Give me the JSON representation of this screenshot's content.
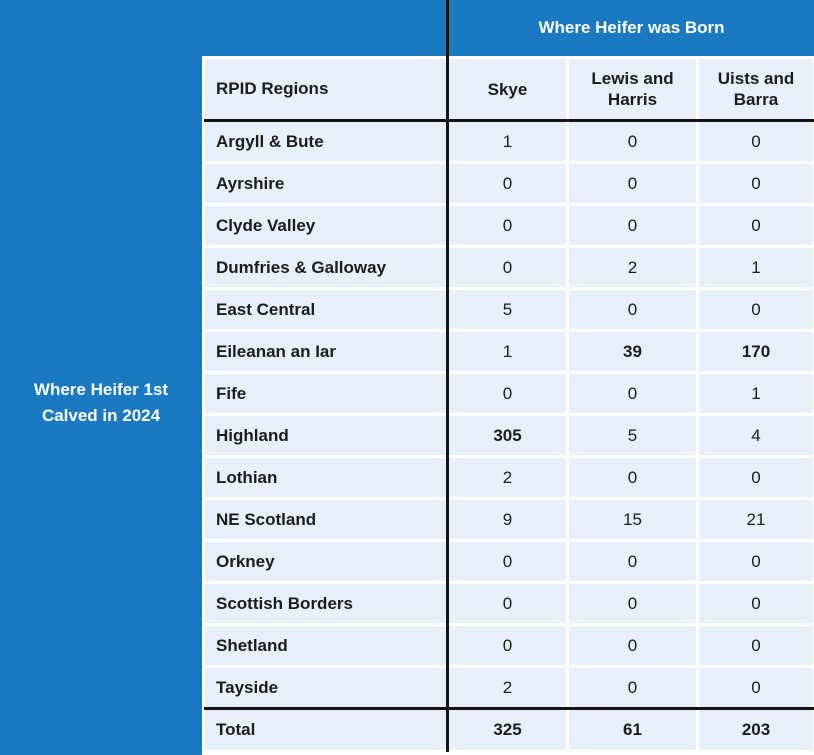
{
  "colors": {
    "brand_blue": "#1a79c1",
    "cell_bg": "#e7f0f8",
    "line": "#141414",
    "text": "#1c1c1c"
  },
  "top_header": {
    "title": "Where Heifer was Born"
  },
  "left_panel": {
    "label_line1": "Where Heifer 1st",
    "label_line2": "Calved in 2024"
  },
  "table": {
    "corner_header": "RPID Regions",
    "columns": [
      "Skye",
      "Lewis and Harris",
      "Uists and Barra"
    ],
    "rows": [
      {
        "label": "Argyll & Bute",
        "values": [
          "1",
          "0",
          "0"
        ],
        "bold": []
      },
      {
        "label": "Ayrshire",
        "values": [
          "0",
          "0",
          "0"
        ],
        "bold": []
      },
      {
        "label": "Clyde Valley",
        "values": [
          "0",
          "0",
          "0"
        ],
        "bold": []
      },
      {
        "label": "Dumfries & Galloway",
        "values": [
          "0",
          "2",
          "1"
        ],
        "bold": []
      },
      {
        "label": "East Central",
        "values": [
          "5",
          "0",
          "0"
        ],
        "bold": []
      },
      {
        "label": "Eileanan an Iar",
        "values": [
          "1",
          "39",
          "170"
        ],
        "bold": [
          1,
          2
        ]
      },
      {
        "label": "Fife",
        "values": [
          "0",
          "0",
          "1"
        ],
        "bold": []
      },
      {
        "label": "Highland",
        "values": [
          "305",
          "5",
          "4"
        ],
        "bold": [
          0
        ]
      },
      {
        "label": "Lothian",
        "values": [
          "2",
          "0",
          "0"
        ],
        "bold": []
      },
      {
        "label": "NE Scotland",
        "values": [
          "9",
          "15",
          "21"
        ],
        "bold": []
      },
      {
        "label": "Orkney",
        "values": [
          "0",
          "0",
          "0"
        ],
        "bold": []
      },
      {
        "label": "Scottish Borders",
        "values": [
          "0",
          "0",
          "0"
        ],
        "bold": []
      },
      {
        "label": "Shetland",
        "values": [
          "0",
          "0",
          "0"
        ],
        "bold": []
      },
      {
        "label": "Tayside",
        "values": [
          "2",
          "0",
          "0"
        ],
        "bold": []
      },
      {
        "label": "Total",
        "values": [
          "325",
          "61",
          "203"
        ],
        "bold": [
          0,
          1,
          2
        ]
      }
    ]
  },
  "chart_data": {
    "type": "table",
    "title": "Where Heifer was Born vs Where Heifer 1st Calved in 2024",
    "column_group_label": "Where Heifer was Born",
    "row_group_label": "Where Heifer 1st Calved in 2024",
    "corner_label": "RPID Regions",
    "columns": [
      "Skye",
      "Lewis and Harris",
      "Uists and Barra"
    ],
    "rows": [
      {
        "region": "Argyll & Bute",
        "values": [
          1,
          0,
          0
        ]
      },
      {
        "region": "Ayrshire",
        "values": [
          0,
          0,
          0
        ]
      },
      {
        "region": "Clyde Valley",
        "values": [
          0,
          0,
          0
        ]
      },
      {
        "region": "Dumfries & Galloway",
        "values": [
          0,
          2,
          1
        ]
      },
      {
        "region": "East Central",
        "values": [
          5,
          0,
          0
        ]
      },
      {
        "region": "Eileanan an Iar",
        "values": [
          1,
          39,
          170
        ]
      },
      {
        "region": "Fife",
        "values": [
          0,
          0,
          1
        ]
      },
      {
        "region": "Highland",
        "values": [
          305,
          5,
          4
        ]
      },
      {
        "region": "Lothian",
        "values": [
          2,
          0,
          0
        ]
      },
      {
        "region": "NE Scotland",
        "values": [
          9,
          15,
          21
        ]
      },
      {
        "region": "Orkney",
        "values": [
          0,
          0,
          0
        ]
      },
      {
        "region": "Scottish Borders",
        "values": [
          0,
          0,
          0
        ]
      },
      {
        "region": "Shetland",
        "values": [
          0,
          0,
          0
        ]
      },
      {
        "region": "Tayside",
        "values": [
          2,
          0,
          0
        ]
      }
    ],
    "totals": {
      "label": "Total",
      "values": [
        325,
        61,
        203
      ]
    }
  }
}
